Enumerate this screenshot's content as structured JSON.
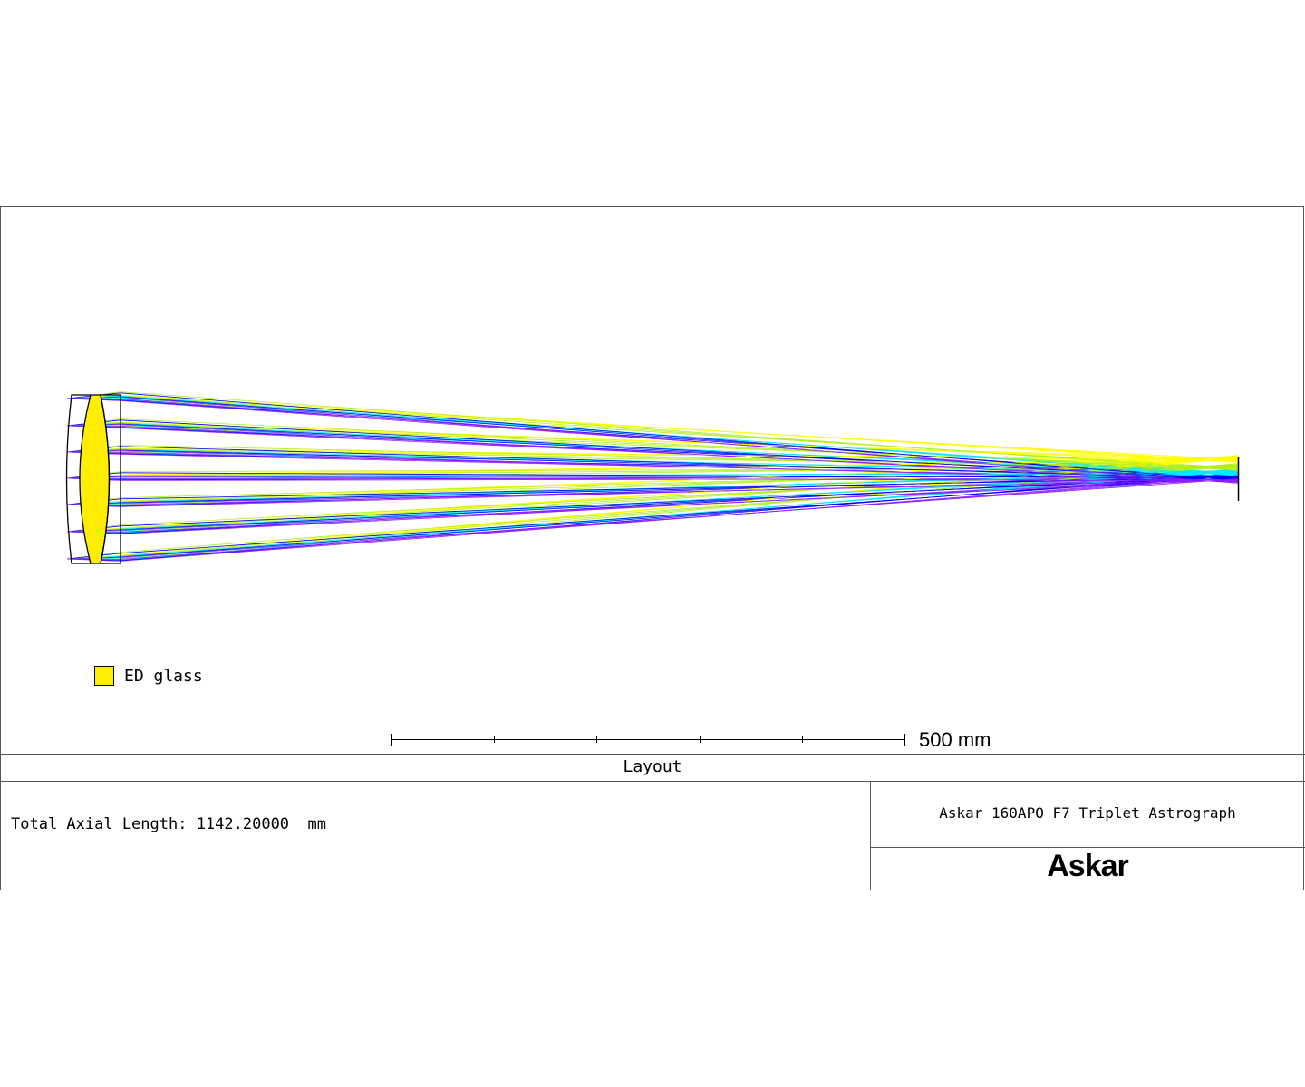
{
  "legend": {
    "label": "ED glass",
    "swatch_color": "#ffee00"
  },
  "scale_bar": {
    "label": "500 mm"
  },
  "title_block": {
    "plot_title": "Layout",
    "total_axial_length": "Total Axial Length: 1142.20000  mm",
    "lens_title": "Askar 160APO F7 Triplet Astrograph",
    "logo": "Askar"
  },
  "ray_colors": [
    "#ffff00",
    "#b0f020",
    "#00e8ff",
    "#0000ff",
    "#9020ff"
  ]
}
